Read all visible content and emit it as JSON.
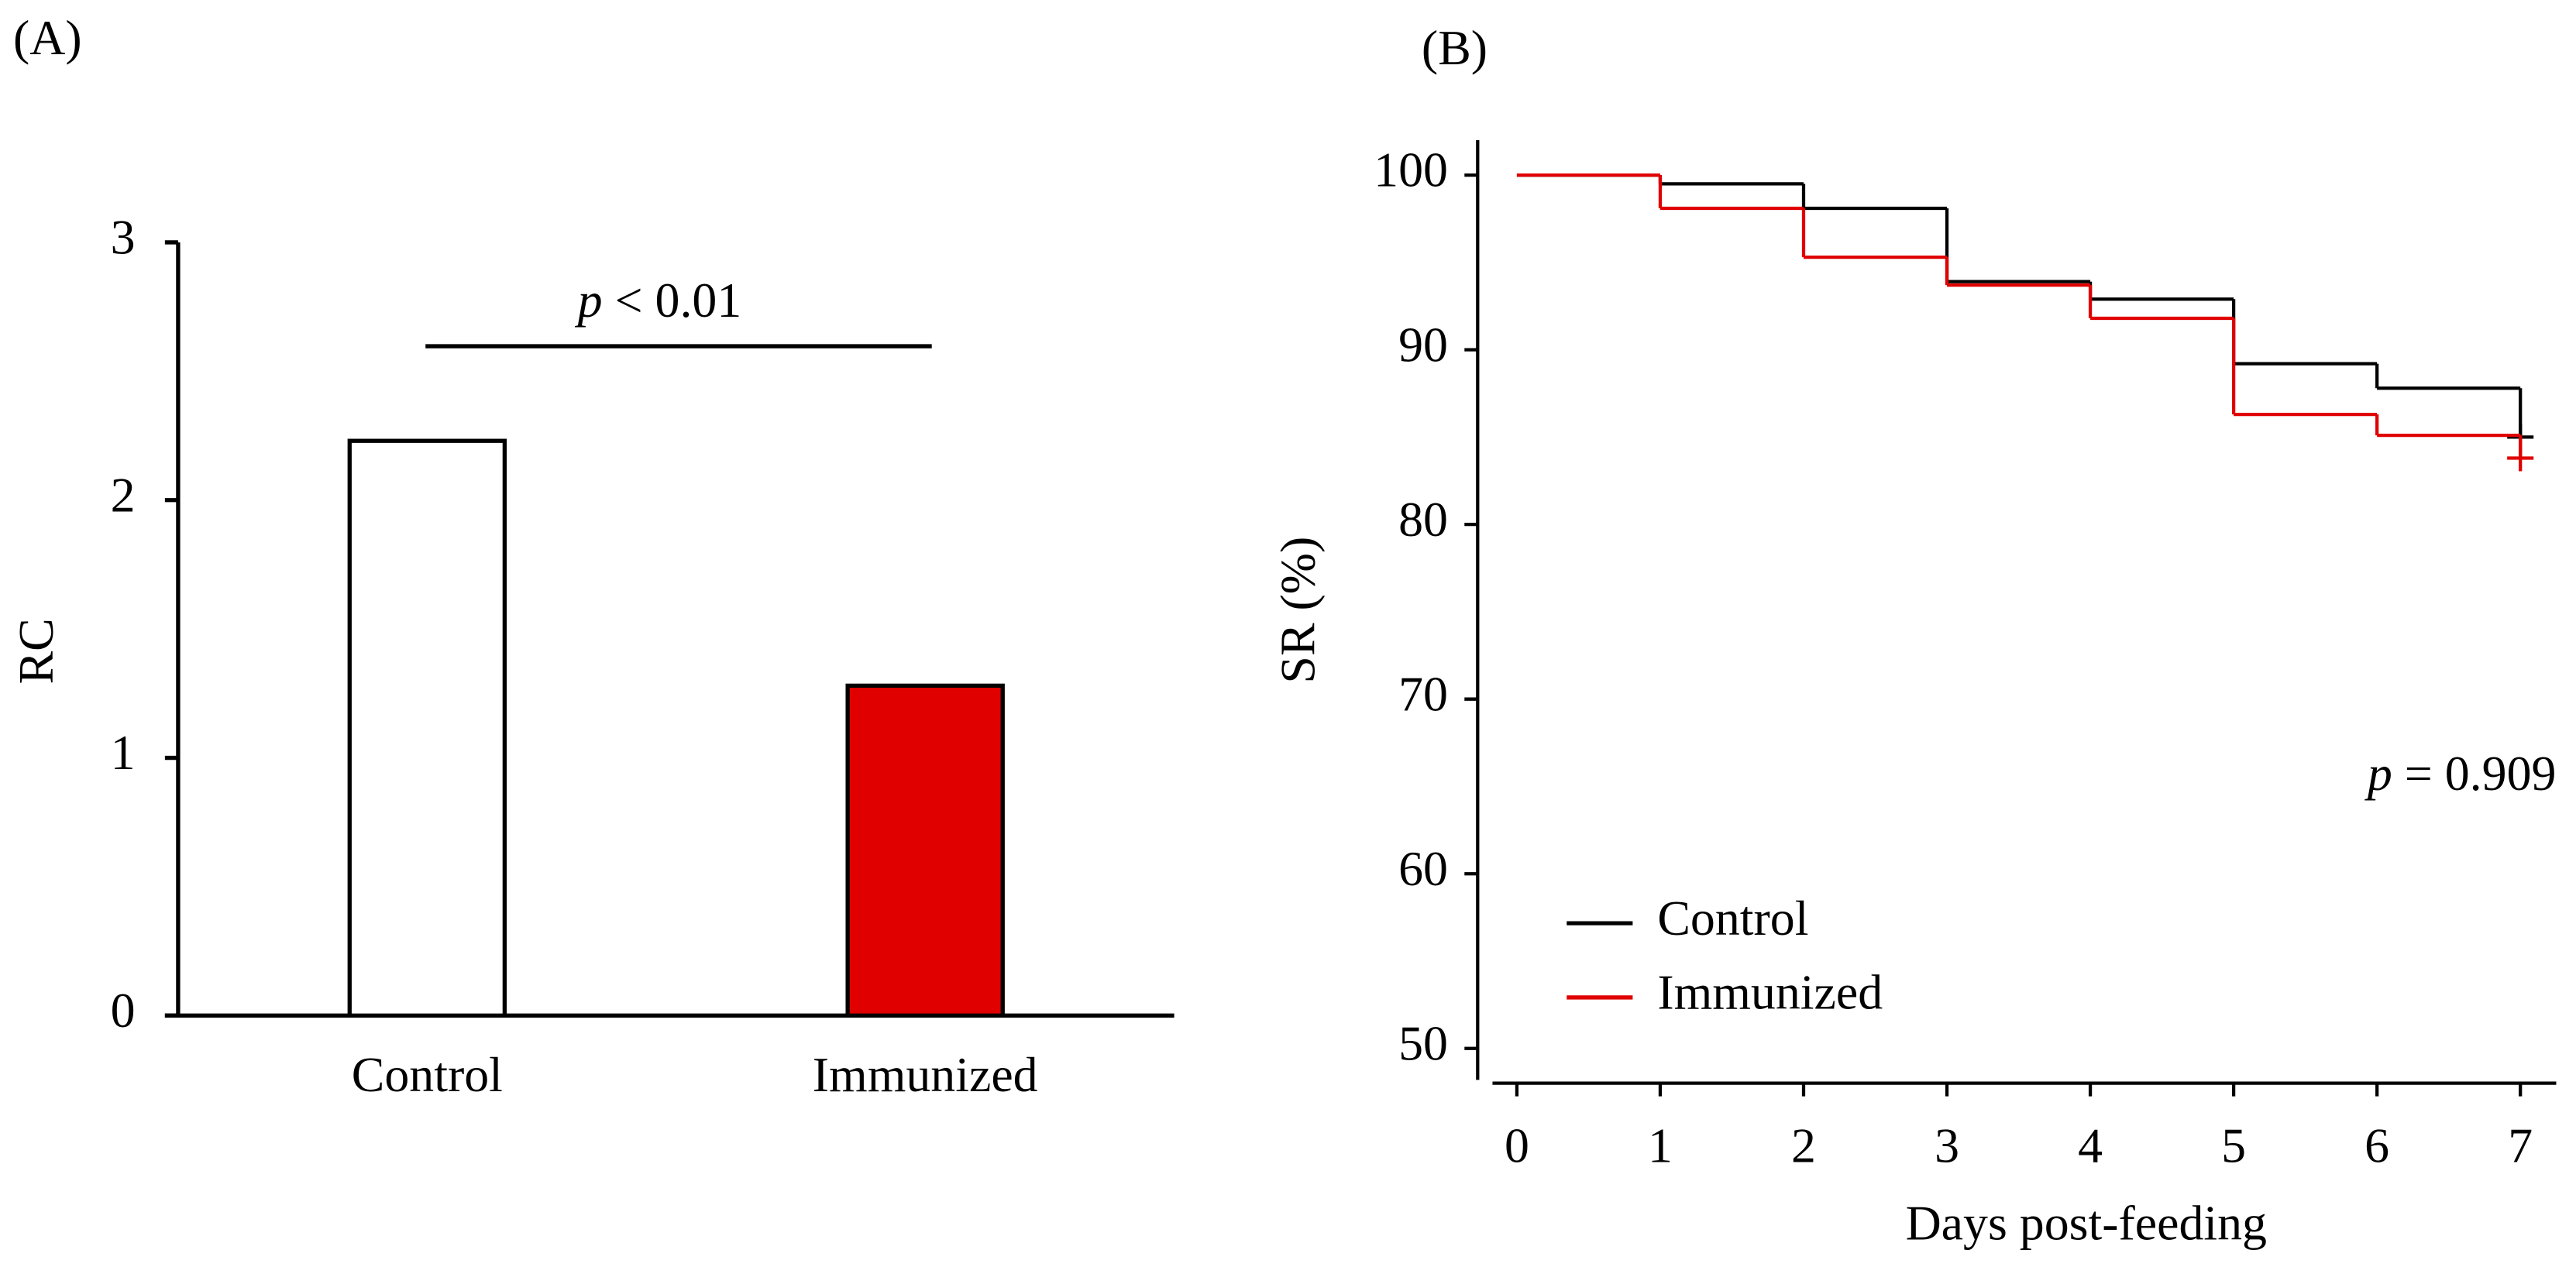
{
  "chart_data": [
    {
      "type": "bar",
      "panel": "(A)",
      "ylabel": "RC",
      "categories": [
        "Control",
        "Immunized"
      ],
      "values": [
        2.23,
        1.28
      ],
      "colors": [
        "#ffffff",
        "#e00000"
      ],
      "ylim": [
        0,
        3
      ],
      "yticks": [
        0,
        1,
        2,
        3
      ],
      "annotation": [
        "p",
        " < 0.01"
      ]
    },
    {
      "type": "step",
      "panel": "(B)",
      "ylabel": "SR (%)",
      "xlabel": "Days post-feeding",
      "annotation": [
        "p",
        " = 0.909"
      ],
      "x": [
        0,
        1,
        2,
        3,
        4,
        5,
        6,
        7
      ],
      "series": [
        {
          "name": "Control",
          "color": "#000000",
          "values": [
            100,
            99.5,
            98.1,
            93.9,
            92.9,
            89.2,
            87.8,
            85.0
          ]
        },
        {
          "name": "Immunized",
          "color": "#e00000",
          "values": [
            100,
            98.1,
            95.3,
            93.7,
            91.8,
            86.3,
            85.1,
            83.8
          ]
        }
      ],
      "xlim": [
        -0.17,
        7.25
      ],
      "xticks": [
        0,
        1,
        2,
        3,
        4,
        5,
        6,
        7
      ],
      "ylim": [
        48.2,
        102
      ],
      "yticks": [
        50,
        60,
        70,
        80,
        90,
        100
      ],
      "legend": "lower-left"
    }
  ]
}
